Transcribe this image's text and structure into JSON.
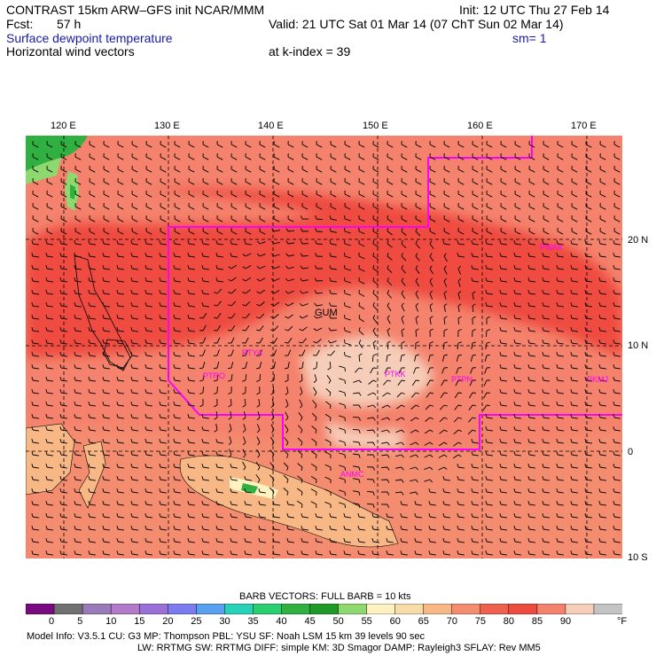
{
  "header": {
    "title": "CONTRAST 15km ARW–GFS init   NCAR/MMM",
    "init": "Init: 12 UTC Thu 27 Feb 14",
    "fcst_label": "Fcst:",
    "fcst_value": "57 h",
    "valid": "Valid: 21 UTC Sat 01 Mar 14 (07 ChT Sun 02 Mar 14)",
    "field1": "Surface dewpoint temperature",
    "smooth": "sm= 1",
    "field2": "Horizontal wind vectors",
    "kindex": "at k-index =  39"
  },
  "axes": {
    "lon_labels": [
      "120 E",
      "130 E",
      "140 E",
      "150 E",
      "160 E",
      "170 E"
    ],
    "lat_labels": [
      "20 N",
      "10 N",
      "0",
      "10 S"
    ]
  },
  "stations": [
    {
      "id": "PGUM",
      "label": "GUM",
      "color": "#000000"
    },
    {
      "id": "PWAK",
      "label": "PWAK",
      "color": "#ff00ff"
    },
    {
      "id": "PTRO",
      "label": "PTRO",
      "color": "#ff00ff"
    },
    {
      "id": "PTYA",
      "label": "PTYA",
      "color": "#ff00ff"
    },
    {
      "id": "PTKK",
      "label": "PTKK",
      "color": "#ff00ff"
    },
    {
      "id": "PTPN",
      "label": "PTPN",
      "color": "#ff00ff"
    },
    {
      "id": "PKMJ",
      "label": "PKMJ",
      "color": "#ff00ff"
    },
    {
      "id": "ANMC",
      "label": "ANMC",
      "color": "#ff00ff"
    }
  ],
  "legend": {
    "barb_note": "BARB VECTORS:  FULL BARB = 10 kts",
    "unit": "°F",
    "values": [
      "0",
      "5",
      "10",
      "15",
      "20",
      "25",
      "30",
      "35",
      "40",
      "45",
      "50",
      "55",
      "60",
      "65",
      "70",
      "75",
      "80",
      "85",
      "90"
    ],
    "colors": [
      "#7a0a80",
      "#707070",
      "#9a7ab8",
      "#b37ac9",
      "#9a6fd8",
      "#7c7cf0",
      "#5aa0f0",
      "#28d2b8",
      "#28d070",
      "#30b040",
      "#1f9a28",
      "#8ed870",
      "#fff2c0",
      "#f8dca8",
      "#f7b886",
      "#f48c70",
      "#f0604e",
      "#ef4c40",
      "#f4826c",
      "#f6cdb8",
      "#c4c4c4"
    ]
  },
  "model_info": {
    "line1": "Model Info: V3.5.1    CU: G3        MP: Thompson     PBL: YSU       SF: Noah LSM     15 km    39 levels    90 sec",
    "line2": "LW: RRTMG     SW: RRTMG   DIFF: simple KM: 3D Smagor DAMP: Rayleigh3   SFLAY: Rev MM5"
  }
}
